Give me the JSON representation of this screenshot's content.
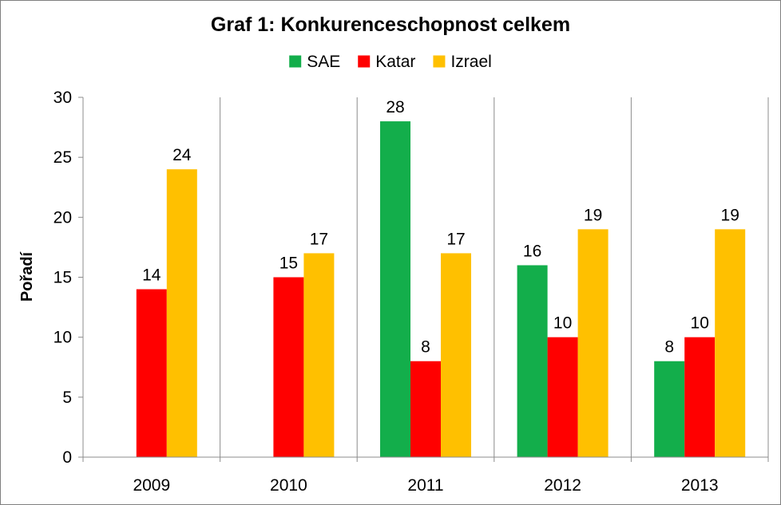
{
  "chart_data": {
    "type": "bar",
    "title": "Graf 1: Konkurenceschopnost celkem",
    "xlabel": "",
    "ylabel": "Pořadí",
    "categories": [
      "2009",
      "2010",
      "2011",
      "2012",
      "2013"
    ],
    "series": [
      {
        "name": "SAE",
        "color": "#13AE4B",
        "values": [
          null,
          null,
          28,
          16,
          8
        ]
      },
      {
        "name": "Katar",
        "color": "#FF0000",
        "values": [
          14,
          15,
          8,
          10,
          10
        ]
      },
      {
        "name": "Izrael",
        "color": "#FFC000",
        "values": [
          24,
          17,
          17,
          19,
          19
        ]
      }
    ],
    "ylim": [
      0,
      30
    ],
    "yticks": [
      0,
      5,
      10,
      15,
      20,
      25,
      30
    ],
    "grid": "vertical category separators",
    "legend": "top",
    "data_labels": true
  }
}
